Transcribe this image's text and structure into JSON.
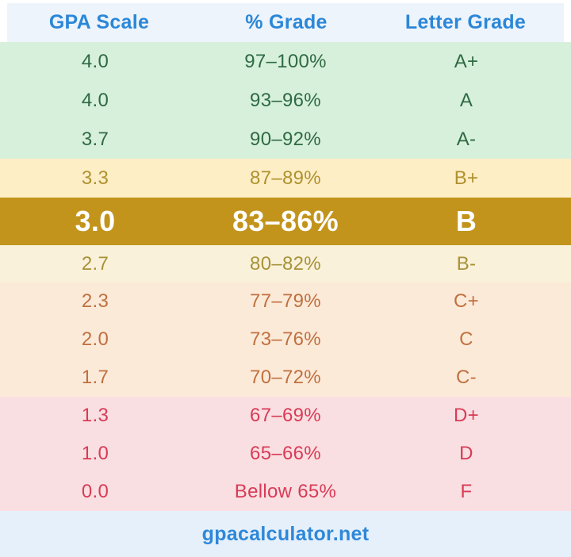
{
  "header": {
    "columns": [
      "GPA Scale",
      "% Grade",
      "Letter Grade"
    ]
  },
  "rows": [
    {
      "gpa": "4.0",
      "percent": "97–100%",
      "letter": "A+",
      "group": "a"
    },
    {
      "gpa": "4.0",
      "percent": "93–96%",
      "letter": "A",
      "group": "a"
    },
    {
      "gpa": "3.7",
      "percent": "90–92%",
      "letter": "A-",
      "group": "a"
    },
    {
      "gpa": "3.3",
      "percent": "87–89%",
      "letter": "B+",
      "group": "bplus"
    },
    {
      "gpa": "3.0",
      "percent": "83–86%",
      "letter": "B",
      "group": "b",
      "highlighted": true
    },
    {
      "gpa": "2.7",
      "percent": "80–82%",
      "letter": "B-",
      "group": "bminus"
    },
    {
      "gpa": "2.3",
      "percent": "77–79%",
      "letter": "C+",
      "group": "c"
    },
    {
      "gpa": "2.0",
      "percent": "73–76%",
      "letter": "C",
      "group": "c"
    },
    {
      "gpa": "1.7",
      "percent": "70–72%",
      "letter": "C-",
      "group": "c"
    },
    {
      "gpa": "1.3",
      "percent": "67–69%",
      "letter": "D+",
      "group": "d"
    },
    {
      "gpa": "1.0",
      "percent": "65–66%",
      "letter": "D",
      "group": "d"
    },
    {
      "gpa": "0.0",
      "percent": "Bellow 65%",
      "letter": "F",
      "group": "d"
    }
  ],
  "groups": {
    "a": {
      "bg": "#d7f0dc",
      "text": "#2f6a42"
    },
    "bplus": {
      "bg": "#fdeec6",
      "text": "#b0912f"
    },
    "b": {
      "bg": "#c3941c",
      "text": "#ffffff"
    },
    "bminus": {
      "bg": "#f9f1d9",
      "text": "#a8923a"
    },
    "c": {
      "bg": "#fcead9",
      "text": "#c0703f"
    },
    "d": {
      "bg": "#f9dfe1",
      "text": "#d93b57"
    }
  },
  "footer": {
    "site": "gpacalculator.net"
  },
  "colors": {
    "header_bg": "#edf4fb",
    "header_text": "#2b87d8",
    "highlight_bg": "#c3941c",
    "highlight_text": "#ffffff",
    "footer_bg": "#e6f0fb",
    "footer_text": "#2f88d8",
    "page_border": "#ffffff"
  },
  "chart_data": {
    "type": "table",
    "title": "GPA Scale to % Grade to Letter Grade conversion",
    "columns": [
      "GPA Scale",
      "% Grade",
      "Letter Grade"
    ],
    "rows": [
      [
        "4.0",
        "97–100%",
        "A+"
      ],
      [
        "4.0",
        "93–96%",
        "A"
      ],
      [
        "3.7",
        "90–92%",
        "A-"
      ],
      [
        "3.3",
        "87–89%",
        "B+"
      ],
      [
        "3.0",
        "83–86%",
        "B"
      ],
      [
        "2.7",
        "80–82%",
        "B-"
      ],
      [
        "2.3",
        "77–79%",
        "C+"
      ],
      [
        "2.0",
        "73–76%",
        "C"
      ],
      [
        "1.7",
        "70–72%",
        "C-"
      ],
      [
        "1.3",
        "67–69%",
        "D+"
      ],
      [
        "1.0",
        "65–66%",
        "D"
      ],
      [
        "0.0",
        "Bellow 65%",
        "F"
      ]
    ],
    "highlighted_row": [
      "3.0",
      "83–86%",
      "B"
    ],
    "source_label": "gpacalculator.net"
  }
}
